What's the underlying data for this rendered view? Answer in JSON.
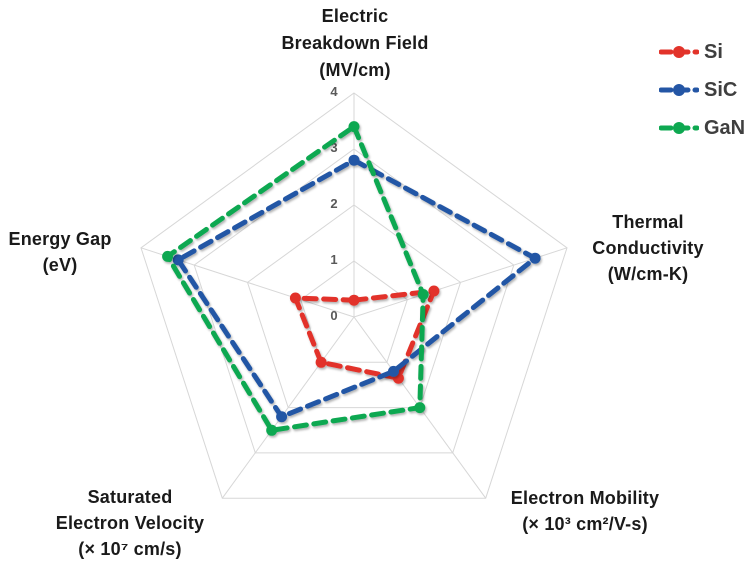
{
  "chart_data": {
    "type": "radar",
    "scale": {
      "min": 0,
      "max": 4,
      "step": 1,
      "tick_labels": [
        "0",
        "1",
        "2",
        "3",
        "4"
      ]
    },
    "axes": [
      {
        "id": "electric-breakdown-field",
        "lines": [
          "Electric",
          "Breakdown Field",
          "(MV/cm)"
        ]
      },
      {
        "id": "thermal-conductivity",
        "lines": [
          "Thermal",
          "Conductivity",
          "(W/cm-K)"
        ]
      },
      {
        "id": "electron-mobility",
        "lines": [
          "Electron Mobility",
          "(× 10³ cm²/V-s)"
        ]
      },
      {
        "id": "saturated-electron-velocity",
        "lines": [
          "Saturated",
          "Electron Velocity",
          "(× 10⁷ cm/s)"
        ]
      },
      {
        "id": "energy-gap",
        "lines": [
          "Energy Gap",
          "(eV)"
        ]
      }
    ],
    "series": [
      {
        "name": "Si",
        "color": "#E2332A",
        "values": [
          0.3,
          1.5,
          1.35,
          1.0,
          1.1
        ]
      },
      {
        "name": "SiC",
        "color": "#2456A5",
        "values": [
          2.8,
          3.4,
          1.2,
          2.2,
          3.3
        ]
      },
      {
        "name": "GaN",
        "color": "#0EA851",
        "values": [
          3.4,
          1.3,
          2.0,
          2.5,
          3.5
        ]
      }
    ],
    "legend_position": "top-right",
    "grid": true,
    "grid_color": "#D7D7D7",
    "tick_color": "#595959",
    "label_color": "#1A1A1A",
    "background": "#FFFFFF"
  }
}
